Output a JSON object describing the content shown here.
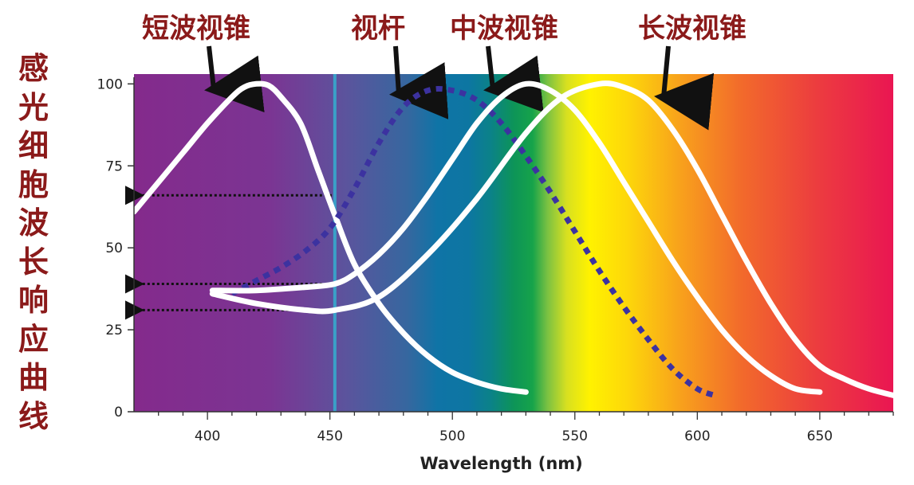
{
  "chart_data": {
    "type": "line",
    "xlabel": "Wavelength (nm)",
    "ylabel": "感光细胞波长响应曲线",
    "xlim": [
      370,
      680
    ],
    "ylim": [
      0,
      103
    ],
    "x_ticks": [
      400,
      450,
      500,
      550,
      600,
      650
    ],
    "y_ticks": [
      0,
      25,
      50,
      75,
      100
    ],
    "marker_line_x": 452,
    "series": [
      {
        "name": "短波视锥",
        "style": "solid",
        "color": "#ffffff",
        "x": [
          370,
          380,
          390,
          400,
          410,
          415,
          420,
          425,
          430,
          438,
          445,
          452,
          460,
          470,
          480,
          490,
          500,
          510,
          520,
          530
        ],
        "y": [
          61,
          70,
          79,
          88,
          96,
          99,
          100,
          99.5,
          96,
          88,
          74,
          60,
          45,
          33,
          24,
          17,
          12,
          9,
          7,
          6
        ]
      },
      {
        "name": "视杆",
        "style": "dotted",
        "color": "#3c32a0",
        "x": [
          410,
          420,
          430,
          440,
          450,
          460,
          470,
          480,
          490,
          500,
          510,
          520,
          530,
          540,
          550,
          560,
          570,
          580,
          590,
          600,
          607
        ],
        "y": [
          36,
          40,
          44,
          49,
          56,
          68,
          82,
          93,
          98,
          98,
          95,
          88,
          78,
          67,
          55,
          43,
          32,
          22,
          13,
          7,
          5
        ]
      },
      {
        "name": "中波视锥",
        "style": "solid",
        "color": "#ffffff",
        "x": [
          402,
          420,
          440,
          452,
          460,
          470,
          480,
          490,
          500,
          510,
          520,
          530,
          540,
          550,
          560,
          570,
          580,
          590,
          600,
          610,
          620,
          630,
          640,
          650
        ],
        "y": [
          37,
          37,
          38,
          39,
          42,
          48,
          56,
          66,
          77,
          88,
          96,
          100,
          98,
          92,
          82,
          70,
          58,
          46,
          35,
          25,
          17,
          11,
          7,
          6
        ]
      },
      {
        "name": "长波视锥",
        "style": "solid",
        "color": "#ffffff",
        "x": [
          402,
          420,
          440,
          452,
          470,
          490,
          510,
          530,
          545,
          560,
          570,
          580,
          590,
          600,
          610,
          620,
          630,
          640,
          650,
          660,
          670,
          680
        ],
        "y": [
          36,
          33,
          31,
          31,
          35,
          48,
          65,
          85,
          96,
          100,
          99,
          95,
          86,
          74,
          60,
          46,
          33,
          22,
          14,
          10,
          7,
          5
        ]
      }
    ],
    "arrow_levels": [
      66,
      39,
      31
    ],
    "curve_labels": [
      "短波视锥",
      "视杆",
      "中波视锥",
      "长波视锥"
    ]
  }
}
